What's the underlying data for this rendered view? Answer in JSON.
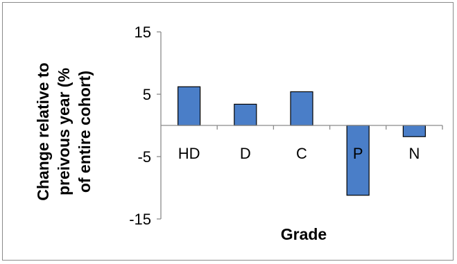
{
  "chart_data": {
    "type": "bar",
    "categories": [
      "HD",
      "D",
      "C",
      "P",
      "N"
    ],
    "series": [
      {
        "values": [
          6.2,
          3.4,
          5.4,
          -11.2,
          -1.8
        ]
      }
    ],
    "xlabel": "Grade",
    "ylabel_lines": [
      "Change relative to",
      "preivous year (%",
      "of entire cohort)"
    ],
    "yticks": [
      15,
      5,
      -5,
      -15
    ],
    "ylim": [
      -15,
      15
    ],
    "grid": false,
    "legend": "none",
    "colors": {
      "bar_fill": "#4a7ec8",
      "bar_stroke": "#000000",
      "axis": "#8a8a8a"
    }
  }
}
